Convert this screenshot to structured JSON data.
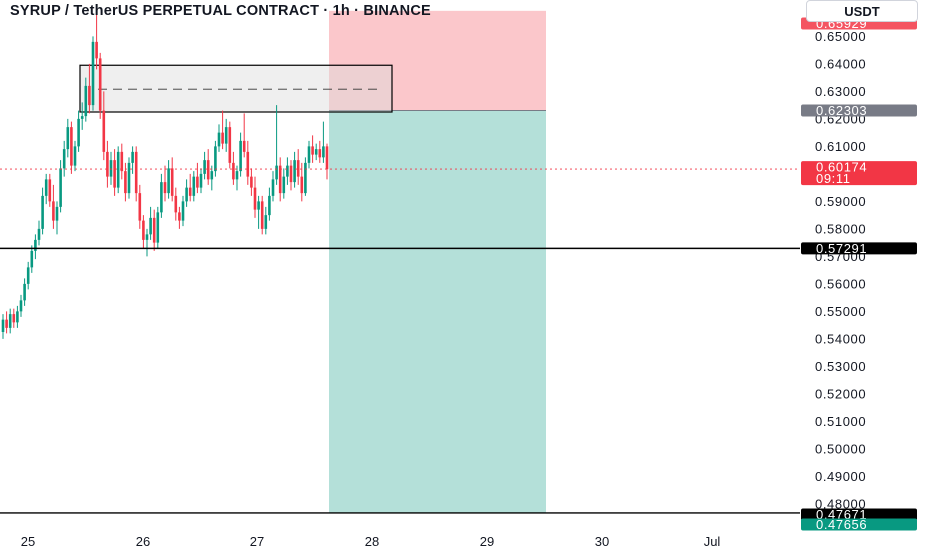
{
  "title": "SYRUP / TetherUS PERPETUAL CONTRACT · 1h · BINANCE",
  "currency": "USDT",
  "colors": {
    "up": "#089981",
    "down": "#f23645",
    "text": "#131722"
  },
  "chart_data": {
    "type": "candlestick",
    "title": "SYRUP / TetherUS PERPETUAL CONTRACT · 1h · BINANCE",
    "ylim": [
      0.4745,
      0.6625
    ],
    "y_ticks": [
      "0.65000",
      "0.64000",
      "0.63000",
      "0.62000",
      "0.61000",
      "0.60000",
      "0.59000",
      "0.58000",
      "0.57000",
      "0.56000",
      "0.55000",
      "0.54000",
      "0.53000",
      "0.52000",
      "0.51000",
      "0.50000",
      "0.49000",
      "0.48000"
    ],
    "x_ticks": [
      "25",
      "26",
      "27",
      "28",
      "29",
      "30",
      "Jul"
    ],
    "price_labels": [
      {
        "value": 0.65929,
        "text": "0.65929",
        "color": "#f23645",
        "style": "faded"
      },
      {
        "value": 0.62303,
        "text": "0.62303",
        "color": "#787b86",
        "style": "solid"
      },
      {
        "value": 0.60174,
        "text": "0.60174",
        "sub": "09:11",
        "color": "#f23645",
        "style": "solid"
      },
      {
        "value": 0.57291,
        "text": "0.57291",
        "color": "#000000",
        "style": "solid"
      },
      {
        "value": 0.47671,
        "text": "0.47671",
        "color": "#000000",
        "style": "solid"
      },
      {
        "value": 0.47656,
        "text": "0.47656",
        "color": "#089981",
        "style": "solid"
      }
    ],
    "horizontal_lines": [
      {
        "value": 0.57291,
        "color": "#000000"
      },
      {
        "value": 0.47671,
        "color": "#000000"
      }
    ],
    "current_price": 0.60174,
    "position_tool": {
      "entry": 0.62303,
      "stop": 0.65929,
      "target": 0.47656
    },
    "rectangle": {
      "top": 0.6395,
      "bottom": 0.6225,
      "mid_dashed": 0.6308
    },
    "candles": [
      [
        0.5425,
        0.549,
        0.54,
        0.547
      ],
      [
        0.547,
        0.55,
        0.542,
        0.544
      ],
      [
        0.544,
        0.551,
        0.542,
        0.549
      ],
      [
        0.549,
        0.551,
        0.544,
        0.546
      ],
      [
        0.546,
        0.552,
        0.544,
        0.55
      ],
      [
        0.55,
        0.556,
        0.548,
        0.554
      ],
      [
        0.554,
        0.562,
        0.552,
        0.56
      ],
      [
        0.56,
        0.568,
        0.558,
        0.566
      ],
      [
        0.566,
        0.574,
        0.564,
        0.572
      ],
      [
        0.572,
        0.578,
        0.569,
        0.576
      ],
      [
        0.576,
        0.583,
        0.574,
        0.58
      ],
      [
        0.58,
        0.595,
        0.578,
        0.592
      ],
      [
        0.592,
        0.6,
        0.589,
        0.598
      ],
      [
        0.598,
        0.6,
        0.588,
        0.59
      ],
      [
        0.59,
        0.596,
        0.58,
        0.583
      ],
      [
        0.583,
        0.59,
        0.578,
        0.588
      ],
      [
        0.588,
        0.605,
        0.586,
        0.602
      ],
      [
        0.602,
        0.612,
        0.599,
        0.609
      ],
      [
        0.609,
        0.62,
        0.606,
        0.617
      ],
      [
        0.617,
        0.619,
        0.6,
        0.603
      ],
      [
        0.603,
        0.612,
        0.601,
        0.61
      ],
      [
        0.61,
        0.623,
        0.608,
        0.62
      ],
      [
        0.62,
        0.626,
        0.616,
        0.621
      ],
      [
        0.621,
        0.635,
        0.619,
        0.632
      ],
      [
        0.632,
        0.64,
        0.622,
        0.625
      ],
      [
        0.625,
        0.65,
        0.623,
        0.648
      ],
      [
        0.648,
        0.66,
        0.638,
        0.642
      ],
      [
        0.642,
        0.644,
        0.62,
        0.623
      ],
      [
        0.623,
        0.63,
        0.605,
        0.608
      ],
      [
        0.608,
        0.612,
        0.595,
        0.599
      ],
      [
        0.599,
        0.608,
        0.596,
        0.605
      ],
      [
        0.605,
        0.609,
        0.592,
        0.595
      ],
      [
        0.595,
        0.61,
        0.593,
        0.608
      ],
      [
        0.608,
        0.611,
        0.598,
        0.601
      ],
      [
        0.601,
        0.604,
        0.59,
        0.593
      ],
      [
        0.593,
        0.606,
        0.591,
        0.604
      ],
      [
        0.604,
        0.61,
        0.6,
        0.608
      ],
      [
        0.608,
        0.61,
        0.59,
        0.593
      ],
      [
        0.593,
        0.596,
        0.58,
        0.583
      ],
      [
        0.583,
        0.585,
        0.573,
        0.576
      ],
      [
        0.576,
        0.58,
        0.57,
        0.578
      ],
      [
        0.578,
        0.588,
        0.576,
        0.584
      ],
      [
        0.584,
        0.587,
        0.572,
        0.575
      ],
      [
        0.575,
        0.588,
        0.573,
        0.586
      ],
      [
        0.586,
        0.6,
        0.584,
        0.597
      ],
      [
        0.597,
        0.603,
        0.59,
        0.593
      ],
      [
        0.593,
        0.605,
        0.591,
        0.602
      ],
      [
        0.602,
        0.606,
        0.59,
        0.592
      ],
      [
        0.592,
        0.595,
        0.583,
        0.586
      ],
      [
        0.586,
        0.588,
        0.58,
        0.583
      ],
      [
        0.583,
        0.592,
        0.581,
        0.59
      ],
      [
        0.59,
        0.598,
        0.588,
        0.595
      ],
      [
        0.595,
        0.6,
        0.59,
        0.592
      ],
      [
        0.592,
        0.601,
        0.59,
        0.599
      ],
      [
        0.599,
        0.604,
        0.593,
        0.595
      ],
      [
        0.595,
        0.602,
        0.593,
        0.6
      ],
      [
        0.6,
        0.608,
        0.598,
        0.605
      ],
      [
        0.605,
        0.609,
        0.596,
        0.598
      ],
      [
        0.598,
        0.603,
        0.594,
        0.601
      ],
      [
        0.601,
        0.612,
        0.599,
        0.61
      ],
      [
        0.61,
        0.618,
        0.608,
        0.615
      ],
      [
        0.615,
        0.623,
        0.609,
        0.611
      ],
      [
        0.611,
        0.62,
        0.608,
        0.617
      ],
      [
        0.617,
        0.619,
        0.602,
        0.604
      ],
      [
        0.604,
        0.608,
        0.596,
        0.598
      ],
      [
        0.598,
        0.603,
        0.594,
        0.601
      ],
      [
        0.601,
        0.615,
        0.599,
        0.612
      ],
      [
        0.612,
        0.622,
        0.606,
        0.608
      ],
      [
        0.608,
        0.612,
        0.596,
        0.599
      ],
      [
        0.599,
        0.602,
        0.592,
        0.595
      ],
      [
        0.595,
        0.599,
        0.584,
        0.587
      ],
      [
        0.587,
        0.592,
        0.58,
        0.59
      ],
      [
        0.59,
        0.592,
        0.578,
        0.58
      ],
      [
        0.58,
        0.588,
        0.578,
        0.585
      ],
      [
        0.585,
        0.595,
        0.583,
        0.592
      ],
      [
        0.592,
        0.601,
        0.59,
        0.598
      ],
      [
        0.598,
        0.625,
        0.596,
        0.603
      ],
      [
        0.603,
        0.606,
        0.59,
        0.593
      ],
      [
        0.593,
        0.602,
        0.591,
        0.599
      ],
      [
        0.599,
        0.606,
        0.596,
        0.603
      ],
      [
        0.603,
        0.605,
        0.594,
        0.597
      ],
      [
        0.597,
        0.608,
        0.595,
        0.605
      ],
      [
        0.605,
        0.609,
        0.596,
        0.599
      ],
      [
        0.599,
        0.604,
        0.59,
        0.593
      ],
      [
        0.593,
        0.606,
        0.592,
        0.604
      ],
      [
        0.604,
        0.612,
        0.602,
        0.61
      ],
      [
        0.61,
        0.614,
        0.604,
        0.607
      ],
      [
        0.607,
        0.611,
        0.605,
        0.609
      ],
      [
        0.609,
        0.612,
        0.604,
        0.606
      ],
      [
        0.606,
        0.619,
        0.604,
        0.61
      ],
      [
        0.61,
        0.611,
        0.598,
        0.6017
      ]
    ]
  }
}
